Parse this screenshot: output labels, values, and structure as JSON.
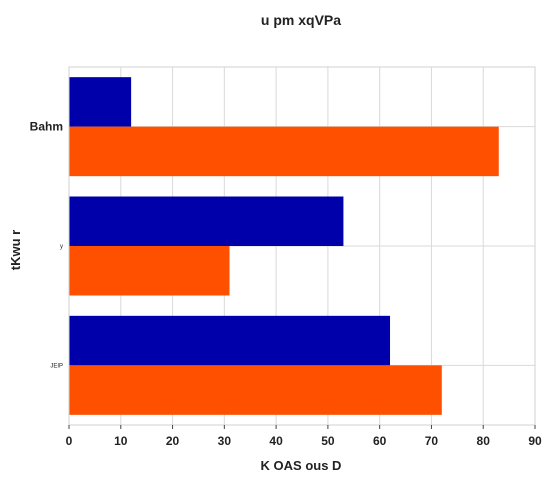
{
  "chart_data": {
    "type": "bar",
    "orientation": "horizontal",
    "title": "u  pm xqVPa",
    "xlabel": "K OAS ous D",
    "ylabel": "tKwu r",
    "categories": [
      "Bahm",
      "y",
      "JEIP"
    ],
    "series": [
      {
        "values": [
          12,
          53,
          62
        ],
        "color": "#0000aa"
      },
      {
        "values": [
          83,
          31,
          72
        ],
        "color": "#ff5000"
      }
    ],
    "xlim": [
      0,
      90
    ],
    "xticks": [
      0,
      10,
      20,
      30,
      40,
      50,
      60,
      70,
      80,
      90
    ],
    "grid": true,
    "legend": "none"
  }
}
